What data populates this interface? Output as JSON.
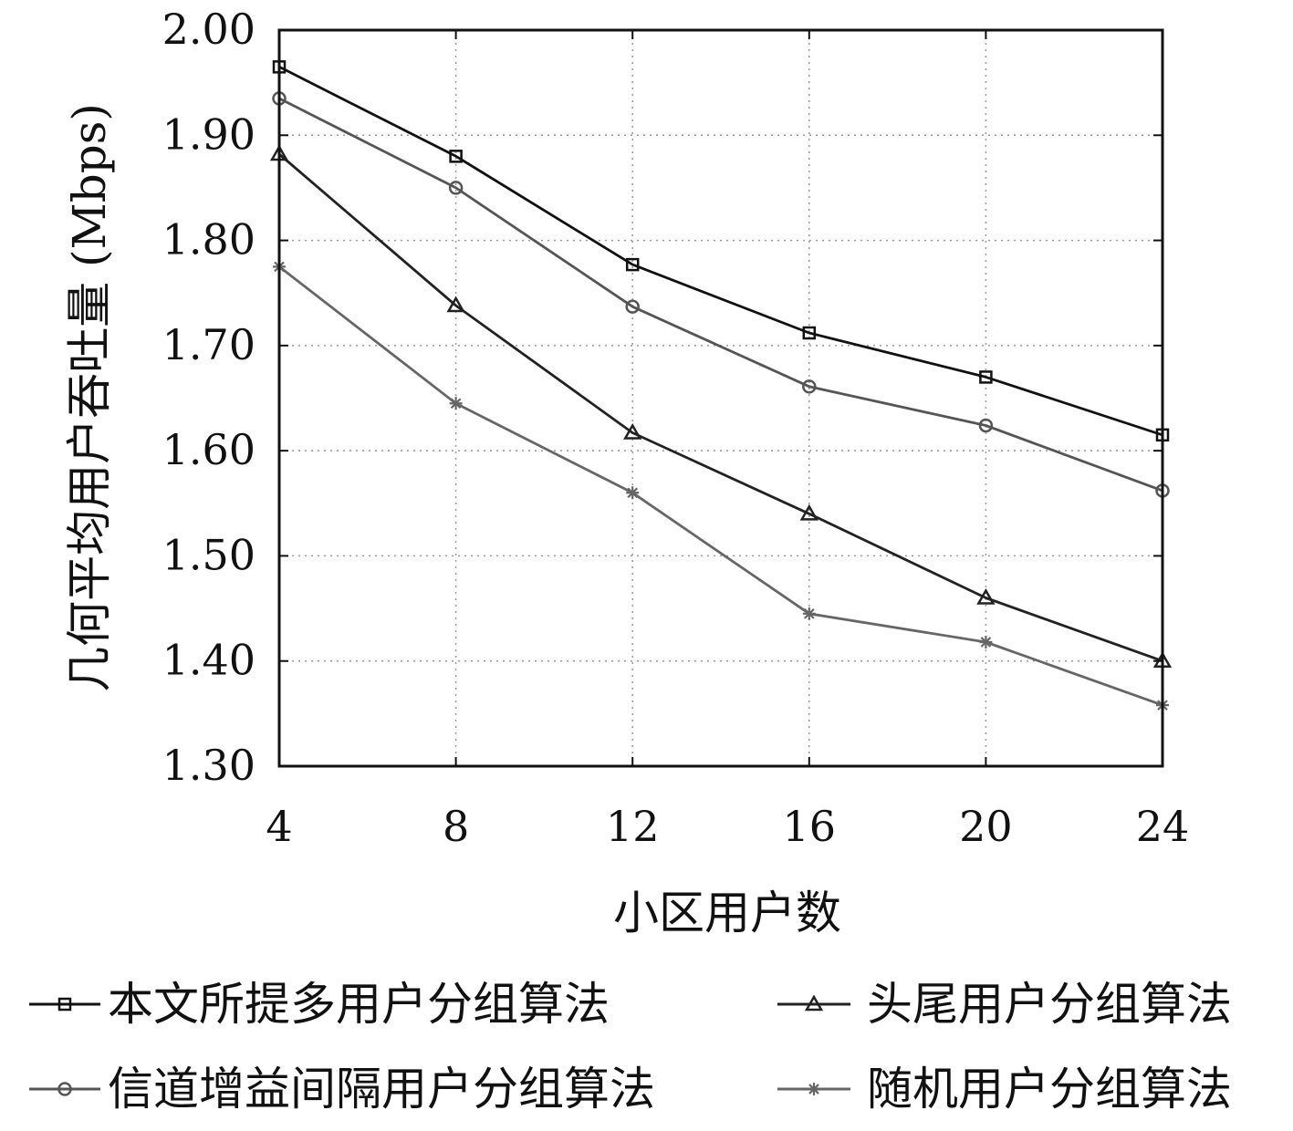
{
  "chart_data": {
    "type": "line",
    "xlabel": "小区用户数",
    "ylabel": "几何平均用户吞吐量 (Mbps)",
    "x": [
      4,
      8,
      12,
      16,
      20,
      24
    ],
    "x_tick_labels": [
      "4",
      "8",
      "12",
      "16",
      "20",
      "24"
    ],
    "y_tick_labels": [
      "1.30",
      "1.40",
      "1.50",
      "1.60",
      "1.70",
      "1.80",
      "1.90",
      "2.00"
    ],
    "xlim": [
      4,
      24
    ],
    "ylim": [
      1.3,
      2.0
    ],
    "grid": true,
    "legend_position": "bottom",
    "series": [
      {
        "name": "本文所提多用户分组算法",
        "marker": "square",
        "color": "#111111",
        "values": [
          1.965,
          1.88,
          1.777,
          1.712,
          1.67,
          1.615
        ]
      },
      {
        "name": "头尾用户分组算法",
        "marker": "triangle",
        "color": "#222222",
        "values": [
          1.882,
          1.738,
          1.617,
          1.54,
          1.46,
          1.4
        ]
      },
      {
        "name": "信道增益间隔用户分组算法",
        "marker": "circle",
        "color": "#555555",
        "values": [
          1.935,
          1.85,
          1.737,
          1.661,
          1.624,
          1.562
        ]
      },
      {
        "name": "随机用户分组算法",
        "marker": "star",
        "color": "#666666",
        "values": [
          1.775,
          1.645,
          1.56,
          1.445,
          1.418,
          1.358
        ]
      }
    ]
  }
}
